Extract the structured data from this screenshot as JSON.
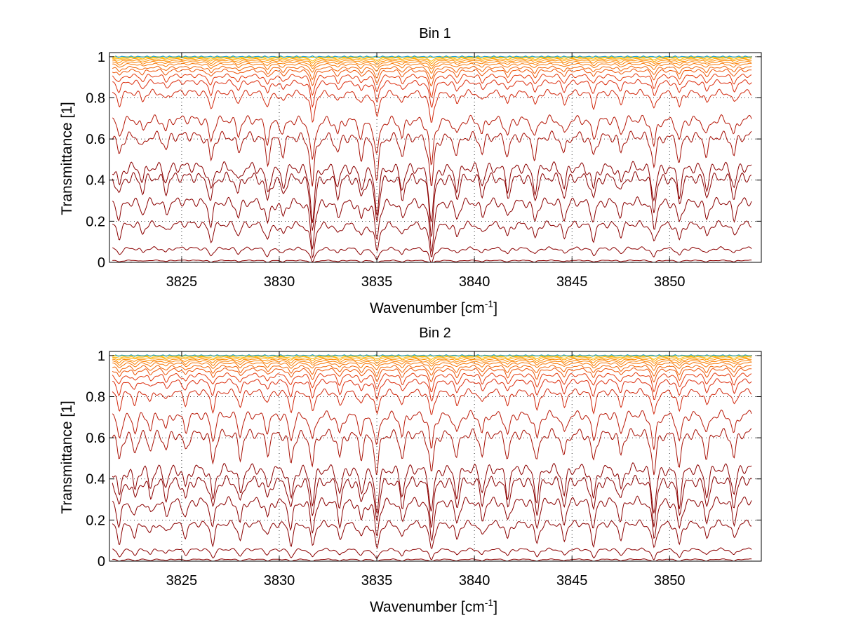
{
  "chart_data": [
    {
      "type": "line",
      "title": "Bin 1",
      "xlabel": "Wavenumber [cm",
      "xlabel_sup": "-1",
      "xlabel_close": "]",
      "ylabel": "Transmittance [1]",
      "xlim": [
        3821.3,
        3854.7
      ],
      "ylim": [
        0,
        1.02
      ],
      "xticks": [
        3825,
        3830,
        3835,
        3840,
        3845,
        3850
      ],
      "yticks": [
        0,
        0.2,
        0.4,
        0.6,
        0.8,
        1
      ],
      "grid": true,
      "series_baselines": [
        0.0,
        0.01,
        0.07,
        0.19,
        0.3,
        0.42,
        0.47,
        0.62,
        0.7,
        0.83,
        0.88,
        0.91,
        0.935,
        0.95,
        0.965,
        0.975,
        0.983,
        0.99,
        0.995,
        0.998,
        1.0
      ],
      "absorption_lines": [
        {
          "x": 3821.8,
          "strength": 0.35
        },
        {
          "x": 3823.0,
          "strength": 0.25
        },
        {
          "x": 3824.2,
          "strength": 0.25
        },
        {
          "x": 3826.5,
          "strength": 0.45
        },
        {
          "x": 3827.9,
          "strength": 0.3
        },
        {
          "x": 3829.4,
          "strength": 0.45
        },
        {
          "x": 3830.2,
          "strength": 0.3
        },
        {
          "x": 3831.7,
          "strength": 0.9
        },
        {
          "x": 3833.0,
          "strength": 0.3
        },
        {
          "x": 3834.2,
          "strength": 0.35
        },
        {
          "x": 3835.0,
          "strength": 0.75
        },
        {
          "x": 3836.3,
          "strength": 0.35
        },
        {
          "x": 3837.8,
          "strength": 0.95
        },
        {
          "x": 3839.1,
          "strength": 0.35
        },
        {
          "x": 3840.4,
          "strength": 0.3
        },
        {
          "x": 3841.7,
          "strength": 0.35
        },
        {
          "x": 3843.1,
          "strength": 0.4
        },
        {
          "x": 3844.6,
          "strength": 0.35
        },
        {
          "x": 3846.1,
          "strength": 0.4
        },
        {
          "x": 3847.5,
          "strength": 0.3
        },
        {
          "x": 3849.2,
          "strength": 0.55
        },
        {
          "x": 3850.5,
          "strength": 0.45
        },
        {
          "x": 3851.9,
          "strength": 0.35
        },
        {
          "x": 3853.3,
          "strength": 0.35
        }
      ],
      "colors": {
        "low": "#8b0000",
        "mid": "#e03010",
        "high": "#ff8c00",
        "top": "#ffd000",
        "accent": "#1fa3d8"
      }
    },
    {
      "type": "line",
      "title": "Bin 2",
      "xlabel": "Wavenumber [cm",
      "xlabel_sup": "-1",
      "xlabel_close": "]",
      "ylabel": "Transmittance [1]",
      "xlim": [
        3821.3,
        3854.7
      ],
      "ylim": [
        0,
        1.02
      ],
      "xticks": [
        3825,
        3830,
        3835,
        3840,
        3845,
        3850
      ],
      "yticks": [
        0,
        0.2,
        0.4,
        0.6,
        0.8,
        1
      ],
      "grid": true,
      "series_baselines": [
        0.0,
        0.01,
        0.06,
        0.19,
        0.3,
        0.4,
        0.46,
        0.63,
        0.72,
        0.83,
        0.88,
        0.91,
        0.935,
        0.95,
        0.965,
        0.975,
        0.983,
        0.99,
        0.995,
        0.998,
        1.0
      ],
      "absorption_lines": [
        {
          "x": 3821.8,
          "strength": 0.5
        },
        {
          "x": 3822.6,
          "strength": 0.35
        },
        {
          "x": 3823.4,
          "strength": 0.3
        },
        {
          "x": 3824.2,
          "strength": 0.3
        },
        {
          "x": 3825.2,
          "strength": 0.35
        },
        {
          "x": 3826.6,
          "strength": 0.55
        },
        {
          "x": 3828.0,
          "strength": 0.45
        },
        {
          "x": 3829.4,
          "strength": 0.35
        },
        {
          "x": 3830.6,
          "strength": 0.55
        },
        {
          "x": 3831.7,
          "strength": 0.6
        },
        {
          "x": 3833.1,
          "strength": 0.45
        },
        {
          "x": 3834.2,
          "strength": 0.4
        },
        {
          "x": 3835.0,
          "strength": 0.7
        },
        {
          "x": 3836.3,
          "strength": 0.45
        },
        {
          "x": 3837.8,
          "strength": 0.75
        },
        {
          "x": 3839.1,
          "strength": 0.45
        },
        {
          "x": 3840.4,
          "strength": 0.4
        },
        {
          "x": 3841.7,
          "strength": 0.45
        },
        {
          "x": 3843.2,
          "strength": 0.55
        },
        {
          "x": 3844.6,
          "strength": 0.45
        },
        {
          "x": 3846.1,
          "strength": 0.55
        },
        {
          "x": 3847.5,
          "strength": 0.4
        },
        {
          "x": 3849.2,
          "strength": 0.75
        },
        {
          "x": 3850.5,
          "strength": 0.6
        },
        {
          "x": 3851.9,
          "strength": 0.45
        },
        {
          "x": 3853.3,
          "strength": 0.45
        }
      ],
      "colors": {
        "low": "#8b0000",
        "mid": "#e03010",
        "high": "#ff8c00",
        "top": "#ffd000",
        "accent": "#1fa3d8"
      }
    }
  ]
}
